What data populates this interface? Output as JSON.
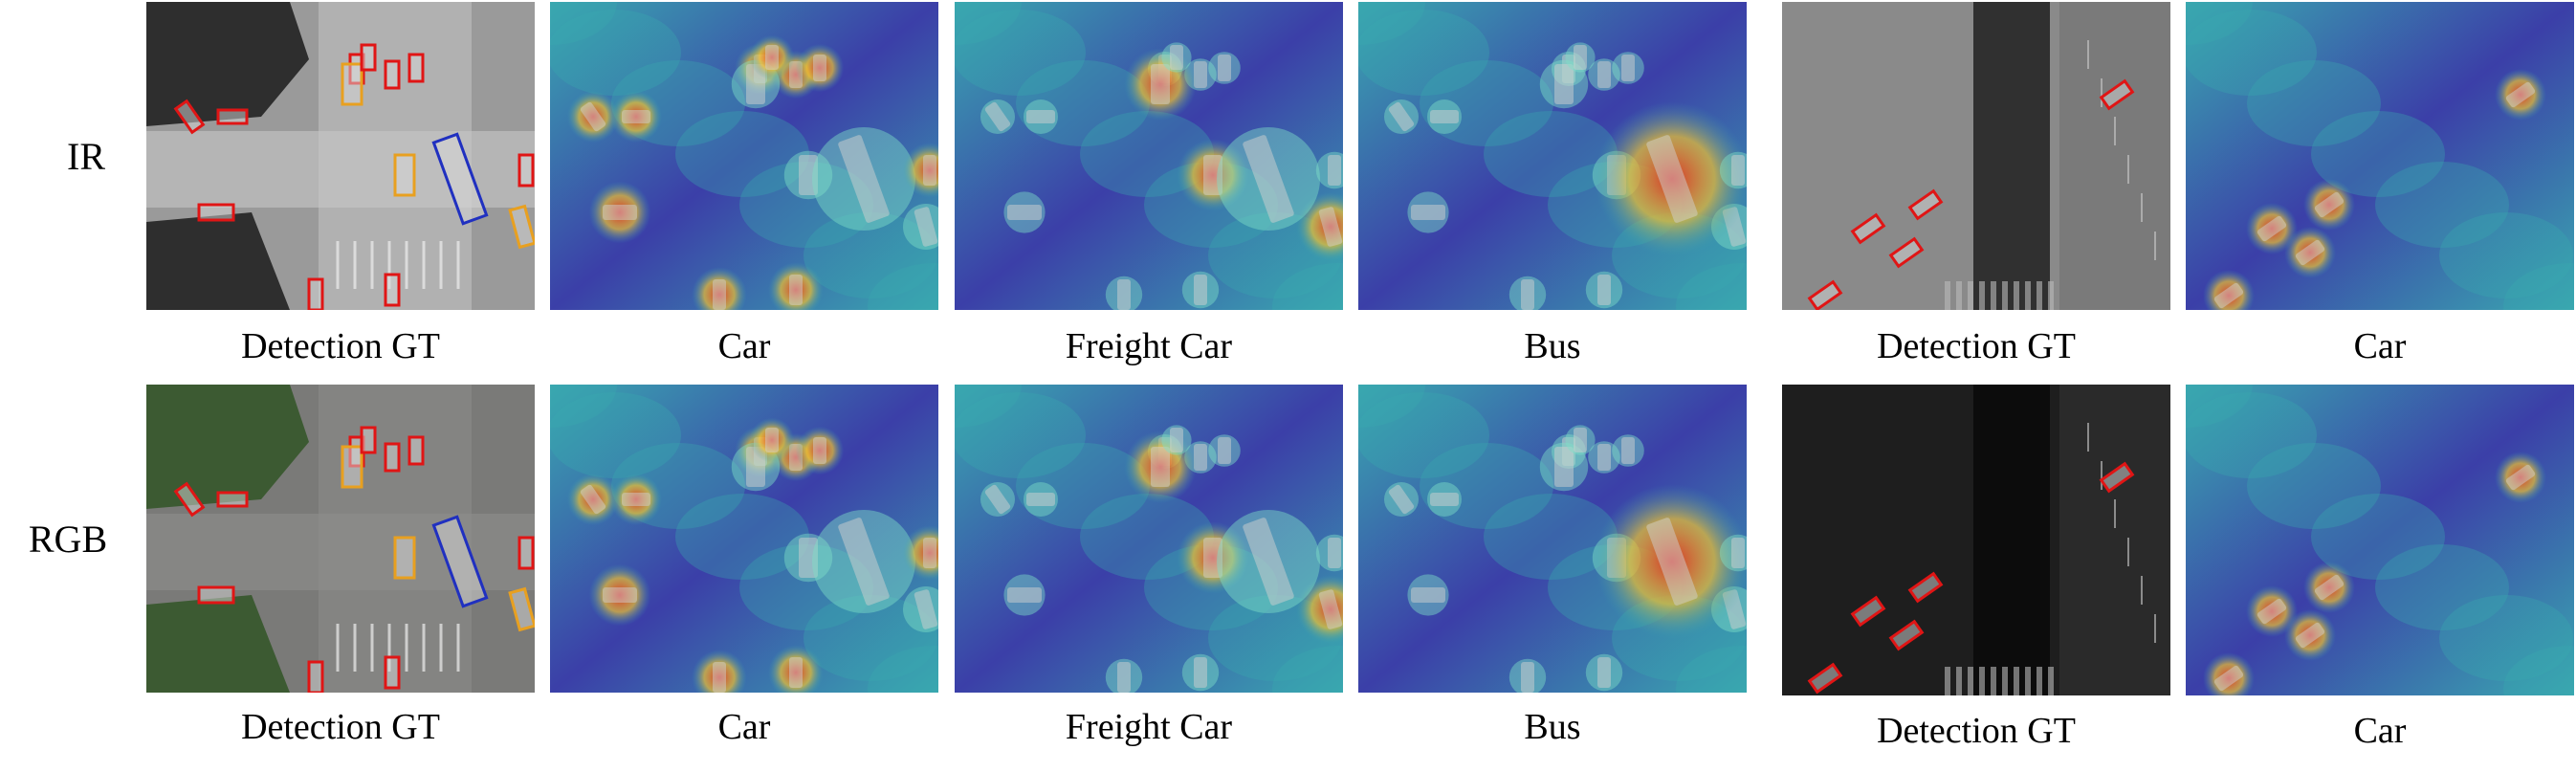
{
  "rows": [
    {
      "label": "IR",
      "panels": [
        {
          "caption": "Detection GT",
          "kind": "gt",
          "scene": "intersection",
          "modality": "ir"
        },
        {
          "caption": "Car",
          "kind": "heatmap",
          "scene": "intersection",
          "target": "car"
        },
        {
          "caption": "Freight Car",
          "kind": "heatmap",
          "scene": "intersection",
          "target": "freight"
        },
        {
          "caption": "Bus",
          "kind": "heatmap",
          "scene": "intersection",
          "target": "bus"
        },
        {
          "caption": "Detection GT",
          "kind": "gt",
          "scene": "road",
          "modality": "ir"
        },
        {
          "caption": "Car",
          "kind": "heatmap",
          "scene": "road",
          "target": "car"
        }
      ]
    },
    {
      "label": "RGB",
      "panels": [
        {
          "caption": "Detection GT",
          "kind": "gt",
          "scene": "intersection",
          "modality": "rgb"
        },
        {
          "caption": "Car",
          "kind": "heatmap",
          "scene": "intersection",
          "target": "car"
        },
        {
          "caption": "Freight Car",
          "kind": "heatmap",
          "scene": "intersection",
          "target": "freight"
        },
        {
          "caption": "Bus",
          "kind": "heatmap",
          "scene": "intersection",
          "target": "bus"
        },
        {
          "caption": "Detection GT",
          "kind": "gt",
          "scene": "road",
          "modality": "rgb"
        },
        {
          "caption": "Car",
          "kind": "heatmap",
          "scene": "road",
          "target": "car"
        }
      ]
    }
  ],
  "colors": {
    "car_box": "#e01515",
    "freight_box": "#e8a020",
    "bus_box": "#2030c0",
    "heat_low": "#3b3fa8",
    "heat_mid": "#3aa8b0",
    "heat_high": "#e03020"
  }
}
